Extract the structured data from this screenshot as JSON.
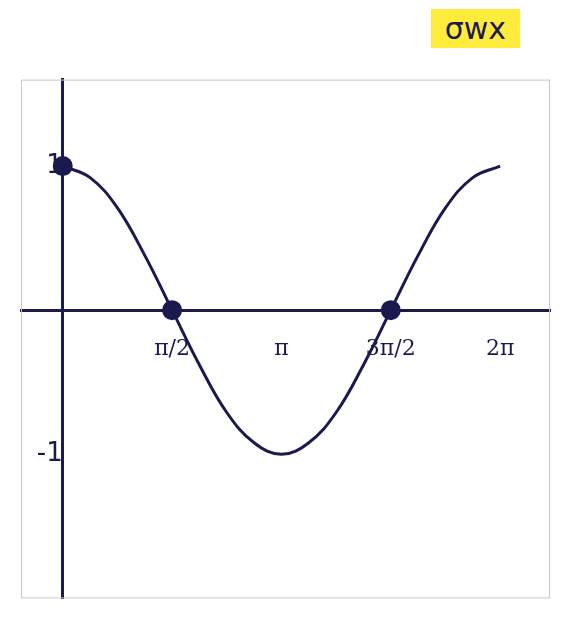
{
  "chart_data": {
    "type": "line",
    "title": "σwx",
    "series": [
      {
        "color": "#1a1a4e",
        "marker": "none",
        "line_style": "solid",
        "x": [
          0,
          0.3927,
          0.7854,
          1.1781,
          1.5708,
          1.9635,
          2.3562,
          2.7489,
          3.1416,
          3.5343,
          3.927,
          4.3197,
          4.7124,
          5.1051,
          5.4978,
          5.8905,
          6.2832
        ],
        "values": [
          1,
          0.92,
          0.71,
          0.38,
          0,
          -0.38,
          -0.71,
          -0.92,
          -1,
          -0.92,
          -0.71,
          -0.38,
          0,
          0.38,
          0.71,
          0.92,
          1
        ]
      },
      {
        "type": "scatter",
        "color": "#1a1a4e",
        "marker": "circle",
        "x": [
          0,
          1.5708,
          4.7124
        ],
        "values": [
          1,
          0,
          0
        ]
      }
    ],
    "xlim": [
      -0.6,
      7.0
    ],
    "xticks": [
      {
        "value": 1.5708,
        "label": "π/2"
      },
      {
        "value": 3.1416,
        "label": "π"
      },
      {
        "value": 4.7124,
        "label": "3π/2"
      },
      {
        "value": 6.2832,
        "label": "2π"
      }
    ],
    "ylim": [
      -2,
      1.6
    ],
    "yticks": [
      -1,
      1
    ],
    "grid": false
  }
}
